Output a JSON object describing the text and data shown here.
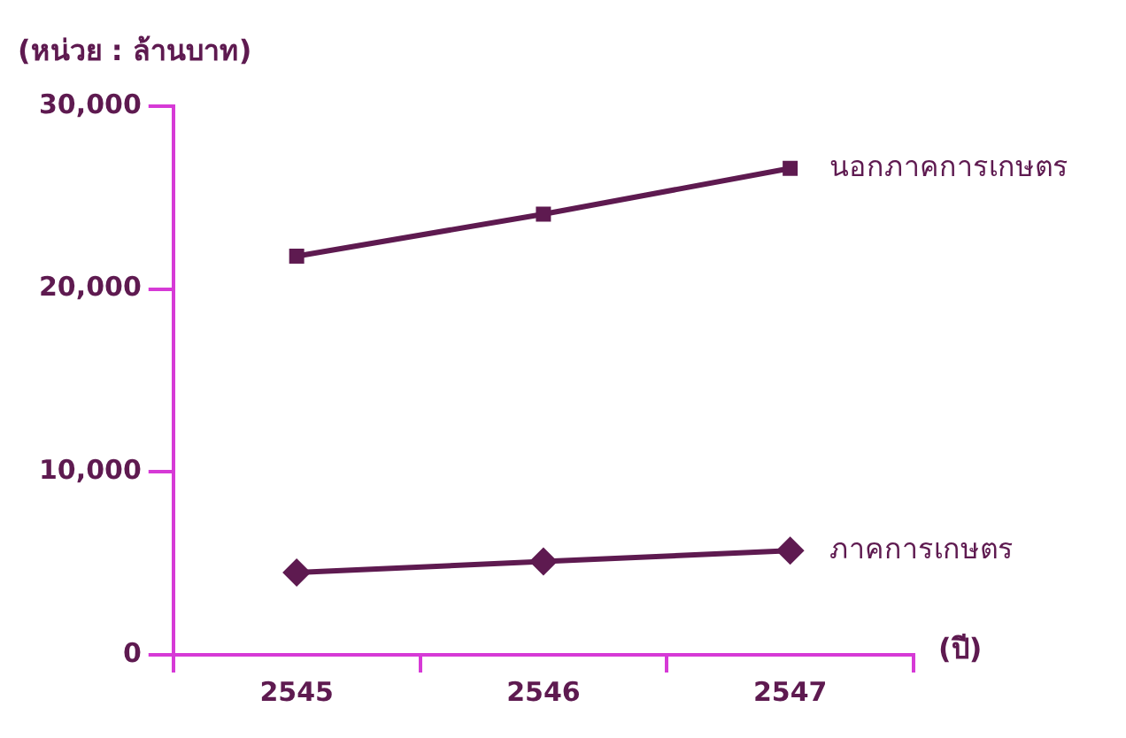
{
  "chart_data": {
    "type": "line",
    "ylabel": "(หน่วย : ล้านบาท)",
    "xlabel": "(ปี)",
    "categories": [
      "2545",
      "2546",
      "2547"
    ],
    "series": [
      {
        "name": "นอกภาคการเกษตร",
        "color": "#5e1a50",
        "marker": "square",
        "values": [
          21800,
          24100,
          26600
        ]
      },
      {
        "name": "ภาคการเกษตร",
        "color": "#5e1a50",
        "marker": "diamond",
        "values": [
          4500,
          5100,
          5700
        ]
      }
    ],
    "ylim": [
      0,
      30000
    ],
    "yticks": [
      {
        "value": 0,
        "label": "0"
      },
      {
        "value": 10000,
        "label": "10,000"
      },
      {
        "value": 20000,
        "label": "20,000"
      },
      {
        "value": 30000,
        "label": "30,000"
      }
    ],
    "legend": false
  }
}
